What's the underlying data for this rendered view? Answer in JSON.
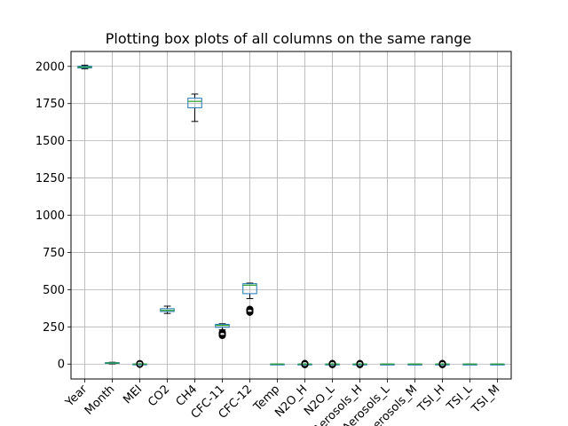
{
  "chart_data": {
    "type": "box",
    "title": "Plotting box plots of all columns on the same range",
    "xlabel": "",
    "ylabel": "",
    "ylim": [
      -100,
      2100
    ],
    "yticks": [
      0,
      250,
      500,
      750,
      1000,
      1250,
      1500,
      1750,
      2000
    ],
    "grid": true,
    "categories": [
      "Year",
      "Month",
      "MEI",
      "CO2",
      "CH4",
      "CFC-11",
      "CFC-12",
      "Temp",
      "N2O_H",
      "N2O_L",
      "Aerosols_H",
      "Aerosols_L",
      "Aerosols_M",
      "TSI_H",
      "TSI_L",
      "TSI_M"
    ],
    "boxes": [
      {
        "name": "Year",
        "whisker_low": 1983,
        "q1": 1989,
        "median": 1995,
        "q3": 2001,
        "whisker_high": 2008,
        "outliers": []
      },
      {
        "name": "Month",
        "whisker_low": 1,
        "q1": 4,
        "median": 7,
        "q3": 10,
        "whisker_high": 12,
        "outliers": []
      },
      {
        "name": "MEI",
        "whisker_low": -1.6,
        "q1": -0.4,
        "median": 0.2,
        "q3": 0.8,
        "whisker_high": 2.0,
        "outliers": [
          2.4,
          2.8,
          3.0,
          -2.0
        ]
      },
      {
        "name": "CO2",
        "whisker_low": 340,
        "q1": 353,
        "median": 361,
        "q3": 372,
        "whisker_high": 389,
        "outliers": []
      },
      {
        "name": "CH4",
        "whisker_low": 1630,
        "q1": 1722,
        "median": 1765,
        "q3": 1786,
        "whisker_high": 1814,
        "outliers": []
      },
      {
        "name": "CFC-11",
        "whisker_low": 230,
        "q1": 247,
        "median": 260,
        "q3": 267,
        "whisker_high": 271,
        "outliers": [
          192,
          196,
          200,
          204,
          208,
          212
        ]
      },
      {
        "name": "CFC-12",
        "whisker_low": 440,
        "q1": 473,
        "median": 530,
        "q3": 540,
        "whisker_high": 544,
        "outliers": [
          348,
          352,
          356,
          360,
          364,
          368
        ]
      },
      {
        "name": "Temp",
        "whisker_low": -0.3,
        "q1": 0.1,
        "median": 0.25,
        "q3": 0.4,
        "whisker_high": 0.75,
        "outliers": []
      },
      {
        "name": "N2O_H",
        "whisker_low": -1.0,
        "q1": -0.3,
        "median": 0.0,
        "q3": 0.3,
        "whisker_high": 1.0,
        "outliers": [
          -4,
          -2,
          2,
          4
        ]
      },
      {
        "name": "N2O_L",
        "whisker_low": -1.0,
        "q1": -0.3,
        "median": 0.0,
        "q3": 0.3,
        "whisker_high": 1.0,
        "outliers": [
          -4,
          -2,
          2,
          4
        ]
      },
      {
        "name": "Aerosols_H",
        "whisker_low": -1.0,
        "q1": -0.3,
        "median": 0.0,
        "q3": 0.3,
        "whisker_high": 1.0,
        "outliers": [
          -4,
          -2,
          2,
          4
        ]
      },
      {
        "name": "Aerosols_L",
        "whisker_low": -0.2,
        "q1": -0.05,
        "median": 0.0,
        "q3": 0.05,
        "whisker_high": 0.2,
        "outliers": []
      },
      {
        "name": "Aerosols_M",
        "whisker_low": -0.2,
        "q1": -0.05,
        "median": 0.0,
        "q3": 0.05,
        "whisker_high": 0.2,
        "outliers": []
      },
      {
        "name": "TSI_H",
        "whisker_low": -1.0,
        "q1": -0.3,
        "median": 0.0,
        "q3": 0.3,
        "whisker_high": 1.0,
        "outliers": [
          -4,
          -2,
          2,
          4
        ]
      },
      {
        "name": "TSI_L",
        "whisker_low": -0.2,
        "q1": -0.05,
        "median": 0.0,
        "q3": 0.05,
        "whisker_high": 0.2,
        "outliers": []
      },
      {
        "name": "TSI_M",
        "whisker_low": -0.2,
        "q1": -0.05,
        "median": 0.0,
        "q3": 0.05,
        "whisker_high": 0.2,
        "outliers": []
      }
    ]
  },
  "colors": {
    "box": "#1f77b4",
    "median": "#2ca02c",
    "whisker": "#000000",
    "grid": "#b0b0b0",
    "outlier": "#000000"
  }
}
